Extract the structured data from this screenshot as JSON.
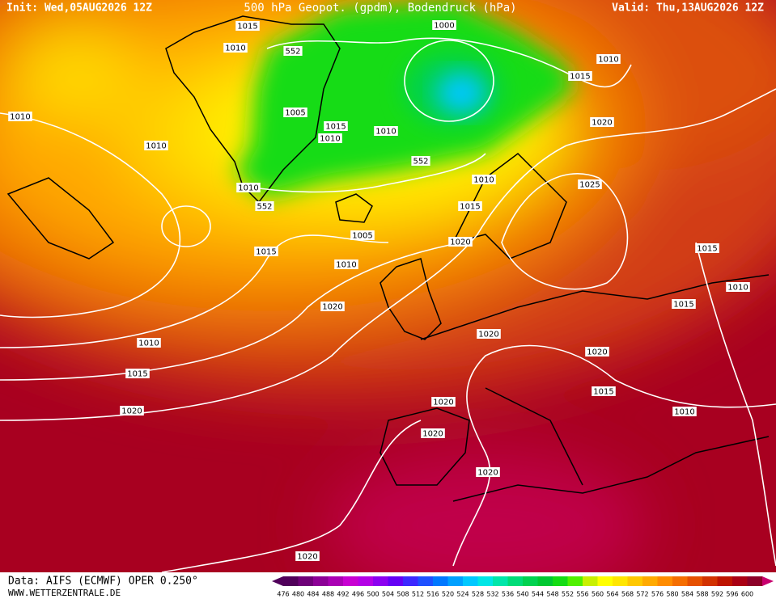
{
  "header": {
    "init": "Init: Wed,05AUG2026 12Z",
    "title": "500 hPa Geopot. (gpdm), Bodendruck (hPa)",
    "valid": "Valid: Thu,13AUG2026 12Z"
  },
  "map": {
    "isobar_labels": [
      1015,
      1010,
      1010,
      1010,
      552,
      1005,
      1015,
      1010,
      1010,
      1000,
      1010,
      1015,
      1020,
      552,
      1010,
      1025,
      1015,
      1010,
      552,
      1005,
      1020,
      1015,
      1010,
      1015,
      1010,
      1015,
      1020,
      1020,
      1020,
      1010,
      1015,
      1015,
      1020,
      1010,
      1020,
      1020,
      1020,
      1020
    ]
  },
  "footer": {
    "source": "Data: AIFS (ECMWF) OPER 0.250°",
    "site": "WWW.WETTERZENTRALE.DE"
  },
  "colorbar": {
    "levels": [
      476,
      480,
      484,
      488,
      492,
      496,
      500,
      504,
      508,
      512,
      516,
      520,
      524,
      528,
      532,
      536,
      540,
      544,
      548,
      552,
      556,
      560,
      564,
      568,
      572,
      576,
      580,
      584,
      588,
      592,
      596,
      600
    ],
    "colors": [
      "#50005a",
      "#6e0078",
      "#8c0096",
      "#aa00b4",
      "#c800d2",
      "#b400e6",
      "#8c00f0",
      "#6400f5",
      "#3c28ff",
      "#1e50ff",
      "#0078ff",
      "#00a0ff",
      "#00c8ff",
      "#00e6e6",
      "#00e6aa",
      "#00dc78",
      "#00d250",
      "#00c832",
      "#14dc14",
      "#50f000",
      "#c8f000",
      "#ffff00",
      "#ffe600",
      "#ffc800",
      "#ffaa00",
      "#ff8c00",
      "#f56e00",
      "#e65000",
      "#d23200",
      "#be1400",
      "#aa0014",
      "#8c0028"
    ]
  }
}
